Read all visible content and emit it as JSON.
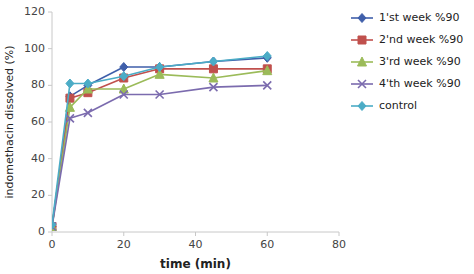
{
  "chart_data": {
    "type": "line",
    "x": [
      0,
      5,
      10,
      20,
      30,
      45,
      60
    ],
    "series": [
      {
        "name": "1'st week %90",
        "color": "#3F5FAA",
        "marker": "diamond",
        "values": [
          3,
          74,
          80,
          90,
          90,
          93,
          95
        ]
      },
      {
        "name": "2'nd week %90",
        "color": "#C0504D",
        "marker": "square",
        "values": [
          3,
          73,
          76,
          84,
          89,
          89,
          89
        ]
      },
      {
        "name": "3'rd week %90",
        "color": "#9BBB59",
        "marker": "triangle",
        "values": [
          3,
          68,
          78,
          78,
          86,
          84,
          88
        ]
      },
      {
        "name": "4'th week %90",
        "color": "#7B6BAE",
        "marker": "x",
        "values": [
          3,
          62,
          65,
          75,
          75,
          79,
          80
        ]
      },
      {
        "name": "control",
        "color": "#4BACC6",
        "marker": "diamond",
        "values": [
          4,
          81,
          81,
          85,
          90,
          93,
          96
        ]
      }
    ],
    "xlabel": "time (min)",
    "ylabel": "indomethacin dissolved (%)",
    "xlim": [
      0,
      80
    ],
    "ylim": [
      0,
      120
    ],
    "xticks": [
      0,
      20,
      40,
      60,
      80
    ],
    "yticks": [
      0,
      20,
      40,
      60,
      80,
      100,
      120
    ],
    "grid": false,
    "legend": "right"
  }
}
